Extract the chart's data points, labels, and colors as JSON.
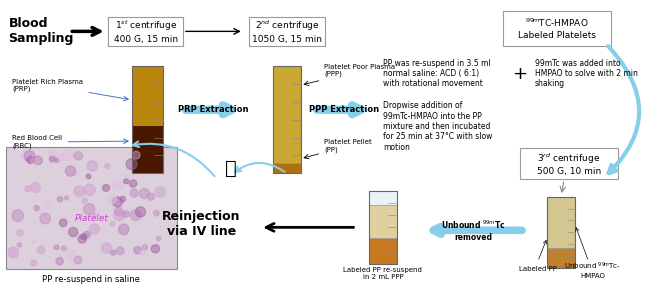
{
  "bg_color": "#ffffff",
  "blood_sampling": "Blood\nSampling",
  "box1_label": "1$^{st}$ centrifuge\n400 G, 15 min",
  "box2_label": "2$^{nd}$ centrifuge\n1050 G, 15 min",
  "box3_label": "$^{99m}$TC-HMPAO\nLabeled Platelets",
  "box3_centrifuge": "3$^{rd}$ centrifuge\n500 G, 10 min",
  "prp_label": "Platelet Rich Plasma\n(PRP)",
  "rbc_label": "Red Blood Cell\n(RBC)",
  "ppp_label": "Platelet Poor Plasma\n(PPP)",
  "pp_label": "Platelet Pellet\n(PP)",
  "prp_extract": "PRP Extraction",
  "ppp_extract": "PPP Extraction",
  "pp_text1": "PP was re-suspend in 3.5 ml\nnormal saline: ACD ( 6:1)\nwith rotational movement",
  "plus_sign": "+",
  "tc_text": "99mTc was added into\nHMPAO to solve with 2 min\nshaking",
  "dropwise_text": "Dropwise addition of\n99mTc-HMPAO into the PP\nmixture and then incubated\nfor 25 min at 37°C with slow\nmotion",
  "platelet_label": "Platelet",
  "pp_saline_label": "PP re-suspend in saline",
  "reinjection_label": "Reinjection\nvia IV line",
  "unbound_label": "Unbound $^{99m}$Tc\nremoved",
  "labeled_pp_label": "Labeled PP re-suspend\nin 2 mL PPP",
  "labeled_pp2": "Labeled PP",
  "unbound_hmpao": "Unbound $^{99m}$Tc-\nHMPAO",
  "arrow_blue": "#87CEEB",
  "arrow_blue2": "#6ab0d0",
  "box_edge": "#999999",
  "tube1_rbc": "#4a1800",
  "tube1_prp": "#b8860b",
  "tube2_ppp": "#c8a832",
  "tube2_pellet": "#b07010",
  "tube3_top": "#d4c890",
  "tube3_pellet": "#c08030",
  "tube4_top": "#e0d0a0",
  "tube4_pellet": "#c87820",
  "micro_bg": "#dcd0dc",
  "micro_text_color": "#cc44cc"
}
